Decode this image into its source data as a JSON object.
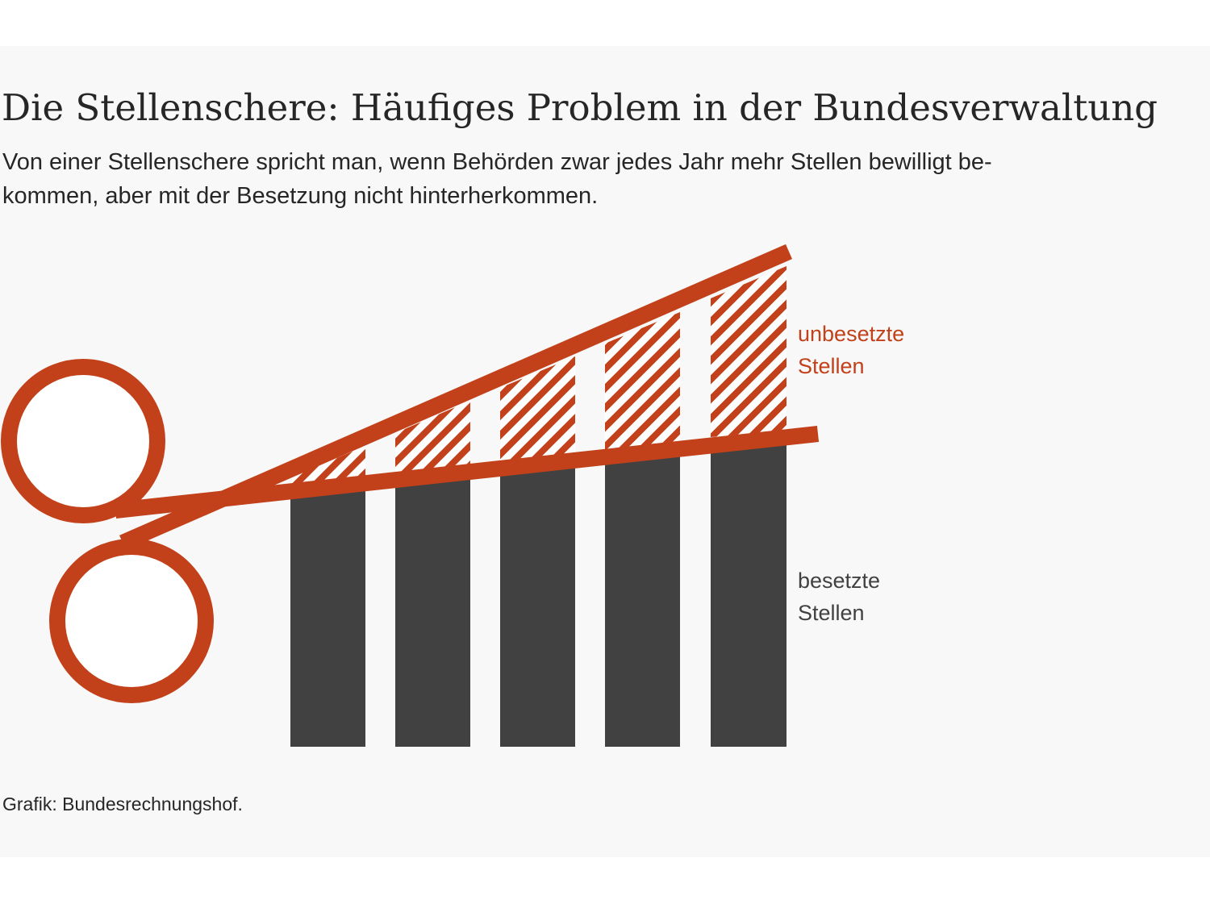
{
  "title": "Die Stellenschere: Häufiges Problem in der Bundesverwaltung",
  "subtitle": {
    "line1": "Von einer Stellenschere spricht man, wenn Behörden zwar jedes Jahr mehr Stellen bewilligt be-",
    "line2": "kommen, aber mit der Besetzung nicht hinterherkommen."
  },
  "labels": {
    "unfilled": {
      "line1": "unbesetzte",
      "line2": "Stellen"
    },
    "filled": {
      "line1": "besetzte",
      "line2": "Stellen"
    }
  },
  "credit": "Grafik: Bundesrechnungshof.",
  "colors": {
    "scissors": "#c2401a",
    "filled_bar": "#414141",
    "unfilled_hatch": "#c2401a",
    "background": "#f7f8f7",
    "text": "#262626"
  },
  "icons": {
    "scissors": "scissors-icon"
  }
}
